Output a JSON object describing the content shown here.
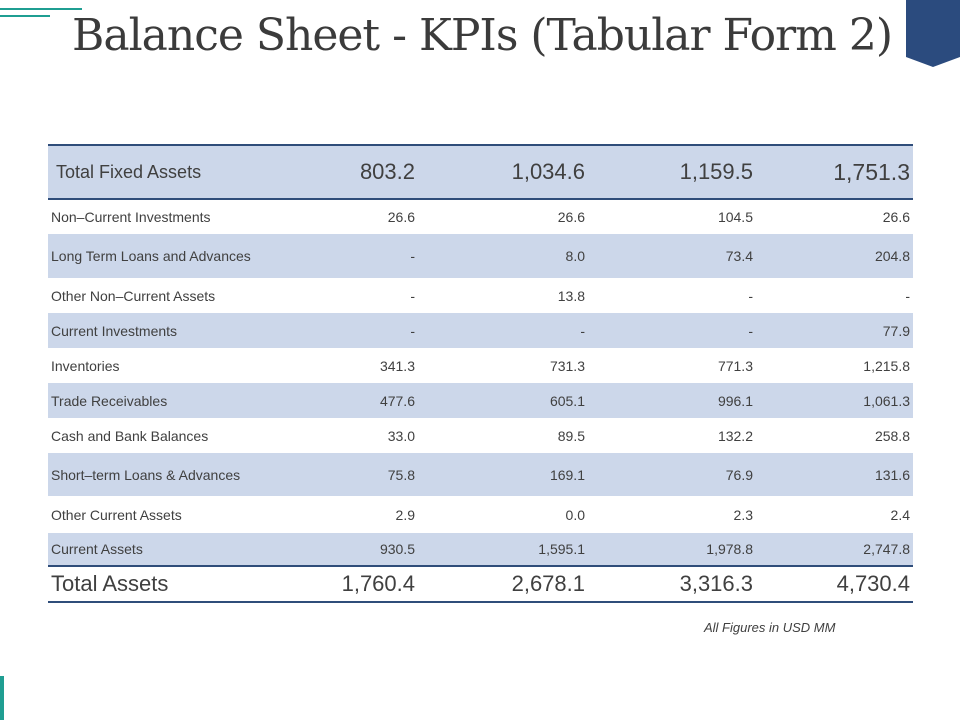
{
  "slide": {
    "title": "Balance Sheet - KPIs (Tabular Form 2)",
    "footnote": "All Figures in USD MM",
    "colors": {
      "accent_teal": "#1f9e92",
      "header_navy": "#2f4d7a",
      "row_shade": "#ccd7ea",
      "corner_tab": "#2b4b7e"
    }
  },
  "table": {
    "header": {
      "label": "Total Fixed Assets",
      "values": [
        "803.2",
        "1,034.6",
        "1,159.5",
        "1,751.3"
      ]
    },
    "rows": [
      {
        "label": "Non–Current Investments",
        "values": [
          "26.6",
          "26.6",
          "104.5",
          "26.6"
        ]
      },
      {
        "label": "Long Term Loans and Advances",
        "values": [
          "-",
          "8.0",
          "73.4",
          "204.8"
        ]
      },
      {
        "label": "Other Non–Current Assets",
        "values": [
          "-",
          "13.8",
          "-",
          "-"
        ]
      },
      {
        "label": "Current Investments",
        "values": [
          "-",
          "-",
          "-",
          "77.9"
        ]
      },
      {
        "label": "Inventories",
        "values": [
          "341.3",
          "731.3",
          "771.3",
          "1,215.8"
        ]
      },
      {
        "label": "Trade Receivables",
        "values": [
          "477.6",
          "605.1",
          "996.1",
          "1,061.3"
        ]
      },
      {
        "label": "Cash and Bank Balances",
        "values": [
          "33.0",
          "89.5",
          "132.2",
          "258.8"
        ]
      },
      {
        "label": "Short–term Loans & Advances",
        "values": [
          "75.8",
          "169.1",
          "76.9",
          "131.6"
        ]
      },
      {
        "label": "Other Current Assets",
        "values": [
          "2.9",
          "0.0",
          "2.3",
          "2.4"
        ]
      },
      {
        "label": "Current Assets",
        "values": [
          "930.5",
          "1,595.1",
          "1,978.8",
          "2,747.8"
        ]
      }
    ],
    "total": {
      "label": "Total Assets",
      "values": [
        "1,760.4",
        "2,678.1",
        "3,316.3",
        "4,730.4"
      ]
    }
  }
}
